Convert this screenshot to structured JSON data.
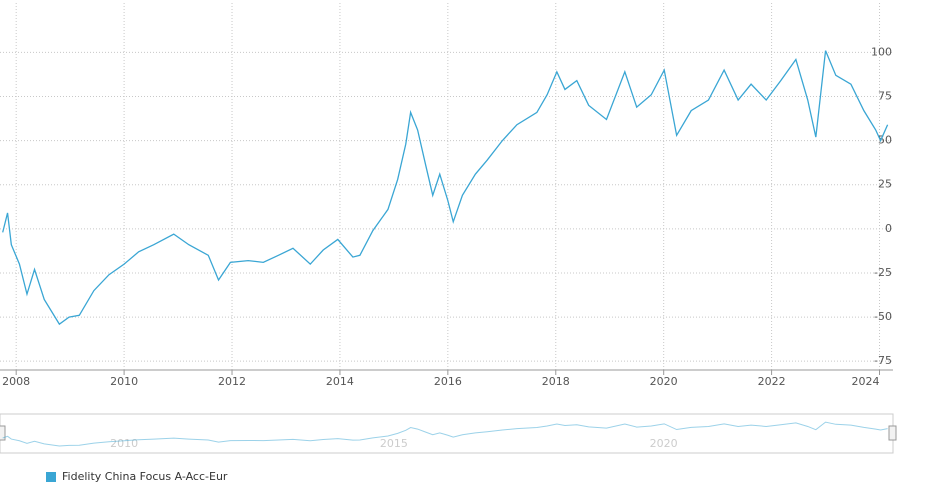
{
  "chart_data": {
    "type": "line",
    "x": [
      2007.75,
      2007.84,
      2007.91,
      2008.06,
      2008.2,
      2008.34,
      2008.52,
      2008.8,
      2008.98,
      2009.17,
      2009.44,
      2009.72,
      2010,
      2010.27,
      2010.55,
      2010.92,
      2011.2,
      2011.56,
      2011.75,
      2011.97,
      2012.3,
      2012.58,
      2012.86,
      2013.13,
      2013.45,
      2013.69,
      2013.96,
      2014.24,
      2014.37,
      2014.61,
      2014.89,
      2015.07,
      2015.22,
      2015.31,
      2015.44,
      2015.59,
      2015.72,
      2015.85,
      2016,
      2016.1,
      2016.27,
      2016.51,
      2016.73,
      2017.01,
      2017.28,
      2017.65,
      2017.84,
      2018.02,
      2018.17,
      2018.39,
      2018.61,
      2018.94,
      2019.28,
      2019.5,
      2019.77,
      2020.01,
      2020.24,
      2020.51,
      2020.83,
      2021.12,
      2021.38,
      2021.62,
      2021.9,
      2022.17,
      2022.45,
      2022.67,
      2022.82,
      2023,
      2023.19,
      2023.47,
      2023.71,
      2023.93,
      2024.02,
      2024.15
    ],
    "series": [
      {
        "name": "Fidelity China Focus A-Acc-Eur",
        "color": "#3aa6d4",
        "values": [
          -2,
          9,
          -9,
          -20,
          -37,
          -23,
          -40,
          -54,
          -50,
          -49,
          -35,
          -26,
          -20,
          -13,
          -9,
          -3,
          -9,
          -15,
          -29,
          -19,
          -18,
          -19,
          -15,
          -11,
          -20,
          -12,
          -6,
          -16,
          -15,
          -1,
          11,
          28,
          48,
          66,
          56,
          36,
          19,
          31,
          16,
          4,
          19,
          31,
          39,
          50,
          59,
          66,
          76,
          89,
          79,
          84,
          70,
          62,
          89,
          69,
          76,
          90,
          53,
          67,
          73,
          90,
          73,
          82,
          73,
          84,
          96,
          73,
          52,
          101,
          87,
          82,
          67,
          56,
          50,
          59
        ]
      }
    ],
    "xlim": [
      2007.7,
      2024.25
    ],
    "xticks": [
      2008,
      2010,
      2012,
      2014,
      2016,
      2018,
      2020,
      2022,
      2024
    ],
    "ylim": [
      -80,
      128
    ],
    "yticks": [
      -75,
      -50,
      -25,
      0,
      25,
      50,
      75,
      100
    ],
    "navigator_xticks": [
      2010,
      2015,
      2020
    ],
    "grid": true
  }
}
